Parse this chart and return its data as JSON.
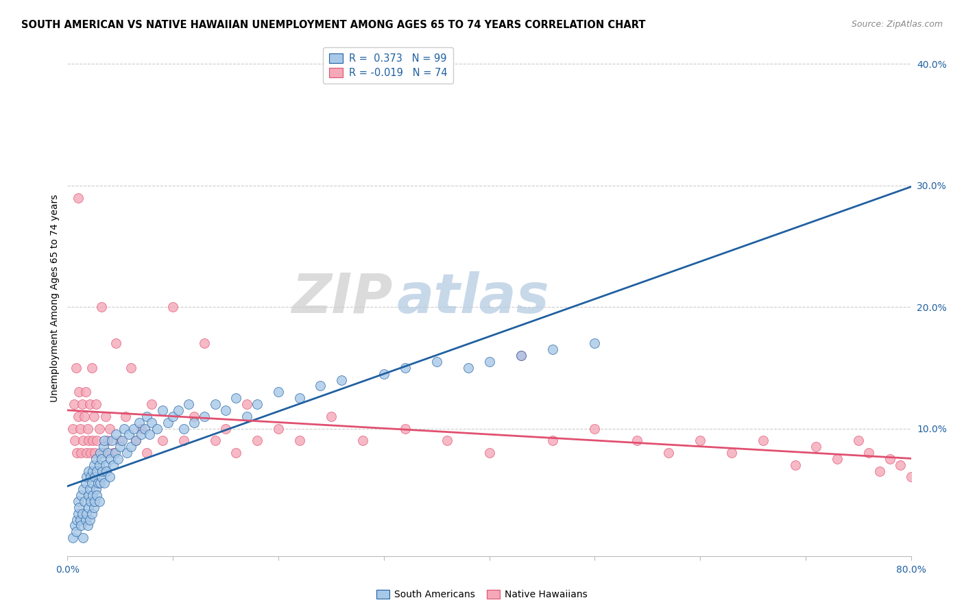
{
  "title": "SOUTH AMERICAN VS NATIVE HAWAIIAN UNEMPLOYMENT AMONG AGES 65 TO 74 YEARS CORRELATION CHART",
  "source": "Source: ZipAtlas.com",
  "ylabel": "Unemployment Among Ages 65 to 74 years",
  "xlim": [
    0,
    0.8
  ],
  "ylim": [
    -0.005,
    0.42
  ],
  "r_south_american": 0.373,
  "n_south_american": 99,
  "r_native_hawaiian": -0.019,
  "n_native_hawaiian": 74,
  "color_sa": "#A8C8E8",
  "color_nh": "#F4A8B8",
  "line_color_sa": "#2060A0",
  "line_color_nh": "#E05070",
  "background_color": "#FFFFFF",
  "watermark_zip": "ZIP",
  "watermark_atlas": "atlas",
  "legend_label_sa": "South Americans",
  "legend_label_nh": "Native Hawaiians",
  "sa_x": [
    0.005,
    0.007,
    0.008,
    0.009,
    0.01,
    0.01,
    0.011,
    0.012,
    0.013,
    0.013,
    0.014,
    0.015,
    0.015,
    0.016,
    0.017,
    0.017,
    0.018,
    0.018,
    0.019,
    0.02,
    0.02,
    0.02,
    0.021,
    0.021,
    0.022,
    0.022,
    0.023,
    0.023,
    0.024,
    0.024,
    0.025,
    0.025,
    0.026,
    0.026,
    0.027,
    0.027,
    0.028,
    0.028,
    0.029,
    0.03,
    0.03,
    0.031,
    0.031,
    0.032,
    0.032,
    0.033,
    0.034,
    0.035,
    0.035,
    0.036,
    0.037,
    0.038,
    0.04,
    0.041,
    0.042,
    0.043,
    0.045,
    0.046,
    0.048,
    0.05,
    0.052,
    0.054,
    0.056,
    0.058,
    0.06,
    0.063,
    0.065,
    0.068,
    0.07,
    0.073,
    0.075,
    0.078,
    0.08,
    0.085,
    0.09,
    0.095,
    0.1,
    0.105,
    0.11,
    0.115,
    0.12,
    0.13,
    0.14,
    0.15,
    0.16,
    0.17,
    0.18,
    0.2,
    0.22,
    0.24,
    0.26,
    0.3,
    0.32,
    0.35,
    0.38,
    0.4,
    0.43,
    0.46,
    0.5
  ],
  "sa_y": [
    0.01,
    0.02,
    0.015,
    0.025,
    0.03,
    0.04,
    0.035,
    0.025,
    0.045,
    0.02,
    0.03,
    0.05,
    0.01,
    0.04,
    0.055,
    0.025,
    0.03,
    0.06,
    0.02,
    0.035,
    0.045,
    0.065,
    0.025,
    0.05,
    0.04,
    0.06,
    0.03,
    0.055,
    0.045,
    0.065,
    0.035,
    0.07,
    0.04,
    0.06,
    0.05,
    0.075,
    0.045,
    0.065,
    0.055,
    0.04,
    0.07,
    0.055,
    0.08,
    0.06,
    0.075,
    0.065,
    0.085,
    0.055,
    0.09,
    0.07,
    0.065,
    0.08,
    0.06,
    0.075,
    0.09,
    0.07,
    0.08,
    0.095,
    0.075,
    0.085,
    0.09,
    0.1,
    0.08,
    0.095,
    0.085,
    0.1,
    0.09,
    0.105,
    0.095,
    0.1,
    0.11,
    0.095,
    0.105,
    0.1,
    0.115,
    0.105,
    0.11,
    0.115,
    0.1,
    0.12,
    0.105,
    0.11,
    0.12,
    0.115,
    0.125,
    0.11,
    0.12,
    0.13,
    0.125,
    0.135,
    0.14,
    0.145,
    0.15,
    0.155,
    0.15,
    0.155,
    0.16,
    0.165,
    0.17
  ],
  "nh_x": [
    0.005,
    0.006,
    0.007,
    0.008,
    0.009,
    0.01,
    0.01,
    0.011,
    0.012,
    0.013,
    0.014,
    0.015,
    0.016,
    0.017,
    0.018,
    0.019,
    0.02,
    0.021,
    0.022,
    0.023,
    0.024,
    0.025,
    0.026,
    0.027,
    0.028,
    0.03,
    0.032,
    0.034,
    0.036,
    0.038,
    0.04,
    0.043,
    0.046,
    0.05,
    0.055,
    0.06,
    0.065,
    0.07,
    0.075,
    0.08,
    0.09,
    0.1,
    0.11,
    0.12,
    0.13,
    0.14,
    0.15,
    0.16,
    0.17,
    0.18,
    0.2,
    0.22,
    0.25,
    0.28,
    0.32,
    0.36,
    0.4,
    0.43,
    0.46,
    0.5,
    0.54,
    0.57,
    0.6,
    0.63,
    0.66,
    0.69,
    0.71,
    0.73,
    0.75,
    0.76,
    0.77,
    0.78,
    0.79,
    0.8
  ],
  "nh_y": [
    0.1,
    0.12,
    0.09,
    0.15,
    0.08,
    0.11,
    0.29,
    0.13,
    0.1,
    0.08,
    0.12,
    0.09,
    0.11,
    0.13,
    0.08,
    0.1,
    0.09,
    0.12,
    0.08,
    0.15,
    0.09,
    0.11,
    0.08,
    0.12,
    0.09,
    0.1,
    0.2,
    0.08,
    0.11,
    0.09,
    0.1,
    0.08,
    0.17,
    0.09,
    0.11,
    0.15,
    0.09,
    0.1,
    0.08,
    0.12,
    0.09,
    0.2,
    0.09,
    0.11,
    0.17,
    0.09,
    0.1,
    0.08,
    0.12,
    0.09,
    0.1,
    0.09,
    0.11,
    0.09,
    0.1,
    0.09,
    0.08,
    0.16,
    0.09,
    0.1,
    0.09,
    0.08,
    0.09,
    0.08,
    0.09,
    0.07,
    0.085,
    0.075,
    0.09,
    0.08,
    0.065,
    0.075,
    0.07,
    0.06
  ]
}
